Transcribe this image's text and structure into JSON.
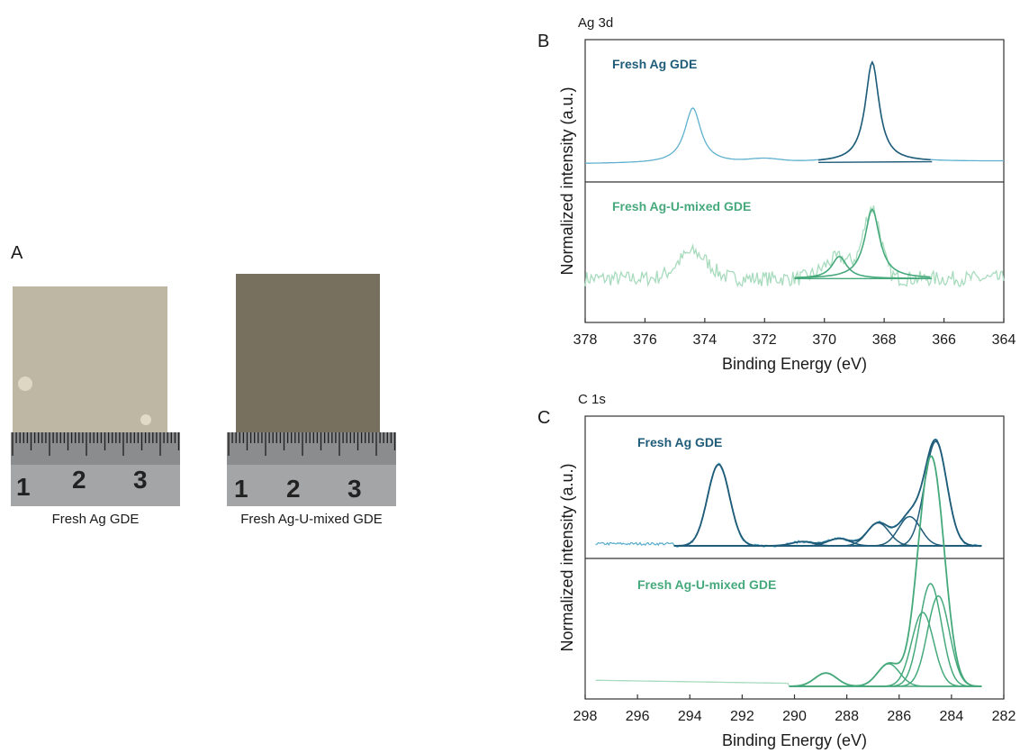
{
  "panels": {
    "a": {
      "letter": "A"
    },
    "b": {
      "letter": "B"
    },
    "c": {
      "letter": "C"
    }
  },
  "photos": [
    {
      "caption": "Fresh Ag GDE",
      "sample_color": "#bdb7a4",
      "ruler_numbers": [
        "1",
        "2",
        "3"
      ]
    },
    {
      "caption": "Fresh Ag-U-mixed GDE",
      "sample_color": "#77705f",
      "ruler_numbers": [
        "1",
        "2",
        "3"
      ]
    }
  ],
  "colors": {
    "ag_dark": "#1f5c7a",
    "ag_light": "#5fb0cf",
    "mix_dark": "#46a97c",
    "mix_light": "#a8dbbd"
  },
  "chart_data": [
    {
      "type": "line",
      "title": "Ag 3d",
      "xlabel": "Binding Energy (eV)",
      "ylabel": "Normalized intensity (a.u.)",
      "xlim": [
        378,
        364
      ],
      "x_reversed": true,
      "xticks": [
        378,
        376,
        374,
        372,
        370,
        368,
        366,
        364
      ],
      "stacked_panels": [
        {
          "label": "Fresh Ag GDE",
          "peaks_eV": [
            374.4,
            368.4
          ],
          "fitted_components": [
            {
              "center": 368.4,
              "relative_height": 1.0
            }
          ]
        },
        {
          "label": "Fresh Ag-U-mixed GDE",
          "peaks_eV": [
            374.4,
            368.4
          ],
          "fitted_components": [
            {
              "center": 368.4,
              "relative_height": 1.0
            },
            {
              "center": 369.5,
              "relative_height": 0.32
            }
          ]
        }
      ]
    },
    {
      "type": "line",
      "title": "C 1s",
      "xlabel": "Binding Energy (eV)",
      "ylabel": "Normalized intensity (a.u.)",
      "xlim": [
        298,
        282
      ],
      "x_reversed": true,
      "xticks": [
        298,
        296,
        294,
        292,
        290,
        288,
        286,
        284,
        282
      ],
      "stacked_panels": [
        {
          "label": "Fresh Ag GDE",
          "fitted_components": [
            {
              "center": 292.9,
              "relative_height": 0.78
            },
            {
              "center": 289.7,
              "relative_height": 0.04
            },
            {
              "center": 288.3,
              "relative_height": 0.07
            },
            {
              "center": 286.8,
              "relative_height": 0.22
            },
            {
              "center": 285.6,
              "relative_height": 0.28
            },
            {
              "center": 284.6,
              "relative_height": 1.0
            }
          ]
        },
        {
          "label": "Fresh Ag-U-mixed GDE",
          "fitted_components": [
            {
              "center": 288.8,
              "relative_height": 0.13
            },
            {
              "center": 286.4,
              "relative_height": 0.22
            },
            {
              "center": 285.1,
              "relative_height": 0.72
            },
            {
              "center": 284.8,
              "relative_height": 1.0
            },
            {
              "center": 284.5,
              "relative_height": 0.88
            }
          ]
        }
      ]
    }
  ]
}
